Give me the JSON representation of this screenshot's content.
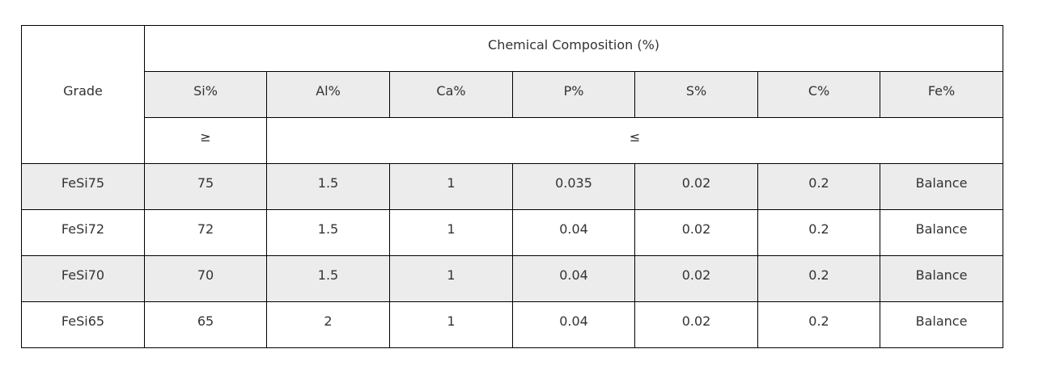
{
  "table": {
    "grade_header": "Grade",
    "group_header": "Chemical Composition (%)",
    "columns": [
      "Si%",
      "Al%",
      "Ca%",
      "P%",
      "S%",
      "C%",
      "Fe%"
    ],
    "min_marker": "≥",
    "max_marker": "≤",
    "rows": [
      [
        "FeSi75",
        "75",
        "1.5",
        "1",
        "0.035",
        "0.02",
        "0.2",
        "Balance"
      ],
      [
        "FeSi72",
        "72",
        "1.5",
        "1",
        "0.04",
        "0.02",
        "0.2",
        "Balance"
      ],
      [
        "FeSi70",
        "70",
        "1.5",
        "1",
        "0.04",
        "0.02",
        "0.2",
        "Balance"
      ],
      [
        "FeSi65",
        "65",
        "2",
        "1",
        "0.04",
        "0.02",
        "0.2",
        "Balance"
      ]
    ]
  }
}
